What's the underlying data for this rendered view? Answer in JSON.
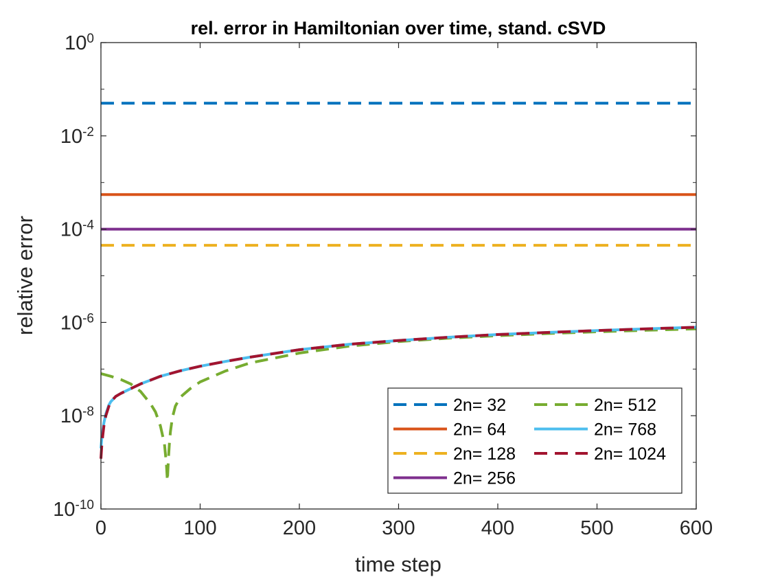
{
  "chart_data": {
    "type": "line",
    "title": "rel. error in Hamiltonian over time, stand. cSVD",
    "xlabel": "time step",
    "ylabel": "relative error",
    "xlim": [
      0,
      600
    ],
    "ylim_log10": [
      -10,
      0
    ],
    "y_scale": "log",
    "x_ticks": [
      0,
      100,
      200,
      300,
      400,
      500,
      600
    ],
    "y_ticks": [
      {
        "base": "10",
        "exp": "-10",
        "value": 1e-10
      },
      {
        "base": "10",
        "exp": "-8",
        "value": 1e-08
      },
      {
        "base": "10",
        "exp": "-6",
        "value": 1e-06
      },
      {
        "base": "10",
        "exp": "-4",
        "value": 0.0001
      },
      {
        "base": "10",
        "exp": "-2",
        "value": 0.01
      },
      {
        "base": "10",
        "exp": "0",
        "value": 1
      }
    ],
    "legend_position": "bottom-right",
    "series": [
      {
        "name": "2n= 32",
        "color": "#0072BD",
        "dash": true,
        "x": [
          0,
          600
        ],
        "y": [
          0.05,
          0.05
        ]
      },
      {
        "name": "2n= 64",
        "color": "#D95319",
        "dash": false,
        "x": [
          0,
          600
        ],
        "y": [
          0.00055,
          0.00055
        ]
      },
      {
        "name": "2n= 128",
        "color": "#EDB120",
        "dash": true,
        "x": [
          0,
          600
        ],
        "y": [
          4.5e-05,
          4.5e-05
        ]
      },
      {
        "name": "2n= 256",
        "color": "#7E2F8E",
        "dash": false,
        "x": [
          0,
          600
        ],
        "y": [
          0.0001,
          0.0001
        ]
      },
      {
        "name": "2n= 512",
        "color": "#77AC30",
        "dash": true,
        "x": [
          0,
          10,
          20,
          30,
          40,
          50,
          55,
          60,
          64,
          66,
          67,
          68,
          69,
          70,
          72,
          75,
          80,
          90,
          100,
          125,
          150,
          200,
          250,
          300,
          350,
          400,
          450,
          500,
          550,
          600
        ],
        "y": [
          8e-08,
          7e-08,
          6e-08,
          4.8e-08,
          3.3e-08,
          1.8e-08,
          1.2e-08,
          6e-09,
          2.5e-09,
          9e-10,
          4e-10,
          1.2e-09,
          2.5e-09,
          4.5e-09,
          9e-09,
          1.6e-08,
          2.5e-08,
          3.8e-08,
          5.3e-08,
          9e-08,
          1.35e-07,
          2.2e-07,
          3.1e-07,
          3.9e-07,
          4.6e-07,
          5.2e-07,
          5.8e-07,
          6.3e-07,
          6.8e-07,
          7.3e-07
        ]
      },
      {
        "name": "2n= 768",
        "color": "#4DBEEE",
        "dash": false,
        "x": [
          0,
          1,
          2,
          3,
          5,
          8,
          10,
          15,
          20,
          30,
          40,
          50,
          60,
          80,
          100,
          125,
          150,
          200,
          250,
          300,
          350,
          400,
          450,
          500,
          550,
          600
        ],
        "y": [
          2e-09,
          3.5e-09,
          5e-09,
          7e-09,
          1.1e-08,
          1.7e-08,
          2e-08,
          2.6e-08,
          3e-08,
          3.8e-08,
          4.8e-08,
          5.8e-08,
          7e-08,
          9.2e-08,
          1.15e-07,
          1.45e-07,
          1.8e-07,
          2.6e-07,
          3.4e-07,
          4.1e-07,
          4.8e-07,
          5.5e-07,
          6.1e-07,
          6.7e-07,
          7.3e-07,
          7.9e-07
        ]
      },
      {
        "name": "2n= 1024",
        "color": "#A2142F",
        "dash": true,
        "x": [
          0,
          1,
          2,
          3,
          5,
          8,
          10,
          15,
          20,
          30,
          40,
          50,
          60,
          80,
          100,
          125,
          150,
          200,
          250,
          300,
          350,
          400,
          450,
          500,
          550,
          600
        ],
        "y": [
          1.2e-09,
          2.5e-09,
          4e-09,
          6e-09,
          1e-08,
          1.6e-08,
          2e-08,
          2.6e-08,
          3e-08,
          3.8e-08,
          4.8e-08,
          5.8e-08,
          7e-08,
          9.2e-08,
          1.15e-07,
          1.45e-07,
          1.8e-07,
          2.6e-07,
          3.4e-07,
          4.1e-07,
          4.8e-07,
          5.5e-07,
          6.1e-07,
          6.7e-07,
          7.3e-07,
          7.9e-07
        ]
      }
    ]
  }
}
